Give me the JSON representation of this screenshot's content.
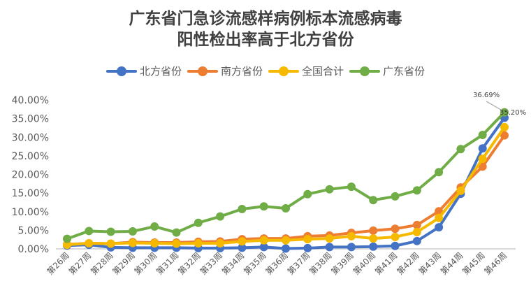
{
  "chart_data": {
    "type": "line",
    "title_line1": "广东省门急诊流感样病例标本流感病毒",
    "title_line2": "阳性检出率高于北方省份",
    "title": "广东省门急诊流感样病例标本流感病毒阳性检出率高于北方省份",
    "xlabel": "",
    "ylabel": "",
    "ylim": [
      0,
      40
    ],
    "yticks": [
      "0.00%",
      "5.00%",
      "10.00%",
      "15.00%",
      "20.00%",
      "25.00%",
      "30.00%",
      "35.00%",
      "40.00%"
    ],
    "grid": false,
    "legend_position": "top",
    "categories": [
      "第26周",
      "第27周",
      "第28周",
      "第29周",
      "第30周",
      "第31周",
      "第32周",
      "第33周",
      "第34周",
      "第35周",
      "第36周",
      "第37周",
      "第38周",
      "第39周",
      "第40周",
      "第41周",
      "第42周",
      "第43周",
      "第44周",
      "第45周",
      "第46周"
    ],
    "series": [
      {
        "name": "北方省份",
        "color": "#4472C4",
        "values": [
          0.9,
          1.1,
          0.4,
          0.3,
          0.3,
          0.3,
          0.2,
          0.2,
          0.3,
          0.5,
          0.1,
          0.2,
          0.5,
          0.5,
          0.6,
          0.8,
          2.1,
          5.8,
          14.8,
          27.0,
          35.2
        ]
      },
      {
        "name": "南方省份",
        "color": "#ED7D31",
        "values": [
          1.2,
          1.5,
          1.4,
          1.8,
          1.7,
          1.7,
          1.9,
          2.0,
          2.6,
          2.8,
          2.8,
          3.4,
          3.6,
          4.3,
          4.9,
          5.4,
          6.4,
          10.1,
          16.5,
          22.1,
          30.5
        ]
      },
      {
        "name": "全国合计",
        "color": "#F5BA00",
        "values": [
          1.1,
          1.5,
          1.4,
          1.6,
          1.5,
          1.4,
          1.5,
          1.5,
          2.0,
          2.3,
          2.3,
          2.6,
          2.8,
          3.4,
          2.8,
          3.2,
          4.5,
          8.3,
          15.6,
          24.2,
          32.7
        ]
      },
      {
        "name": "广东省份",
        "color": "#70AD47",
        "values": [
          2.7,
          4.8,
          4.6,
          4.7,
          6.0,
          4.4,
          7.0,
          8.7,
          10.7,
          11.4,
          10.9,
          14.7,
          16.0,
          16.7,
          13.1,
          14.1,
          15.7,
          20.6,
          26.8,
          30.6,
          36.69
        ]
      }
    ],
    "annotations": [
      {
        "text": "36.69%",
        "series": "广东省份",
        "category": "第46周"
      },
      {
        "text": "35.20%",
        "series": "北方省份",
        "category": "第46周"
      }
    ]
  },
  "legend": [
    {
      "label": "北方省份",
      "color": "#4472C4"
    },
    {
      "label": "南方省份",
      "color": "#ED7D31"
    },
    {
      "label": "全国合计",
      "color": "#F5BA00"
    },
    {
      "label": "广东省份",
      "color": "#70AD47"
    }
  ]
}
